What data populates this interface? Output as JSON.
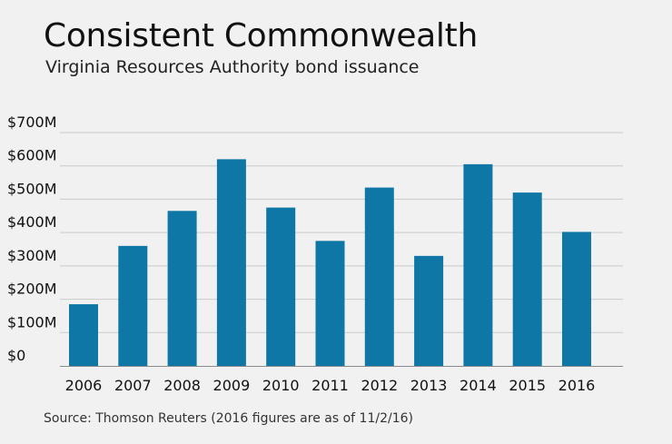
{
  "header": {
    "title": "Consistent Commonwealth",
    "subtitle": "Virginia Resources Authority bond issuance"
  },
  "footer": {
    "source": "Source: Thomson Reuters (2016 figures are as of 11/2/16)"
  },
  "colors": {
    "bar": "#0f77a6",
    "grid": "#c9cbcb",
    "axis": "#8a8c8c",
    "background": "#f0f1f0"
  },
  "chart_data": {
    "type": "bar",
    "title": "Consistent Commonwealth",
    "subtitle": "Virginia Resources Authority bond issuance",
    "xlabel": "",
    "ylabel": "",
    "categories": [
      "2006",
      "2007",
      "2008",
      "2009",
      "2010",
      "2011",
      "2012",
      "2013",
      "2014",
      "2015",
      "2016"
    ],
    "values": [
      185,
      360,
      465,
      620,
      475,
      375,
      535,
      330,
      605,
      520,
      402
    ],
    "unit": "$M",
    "ylim": [
      0,
      700
    ],
    "yticks": [
      0,
      100,
      200,
      300,
      400,
      500,
      600,
      700
    ],
    "ytick_labels": [
      "$0",
      "$100M",
      "$200M",
      "$300M",
      "$400M",
      "$500M",
      "$600M",
      "$700M"
    ],
    "grid": true,
    "legend": "none"
  }
}
